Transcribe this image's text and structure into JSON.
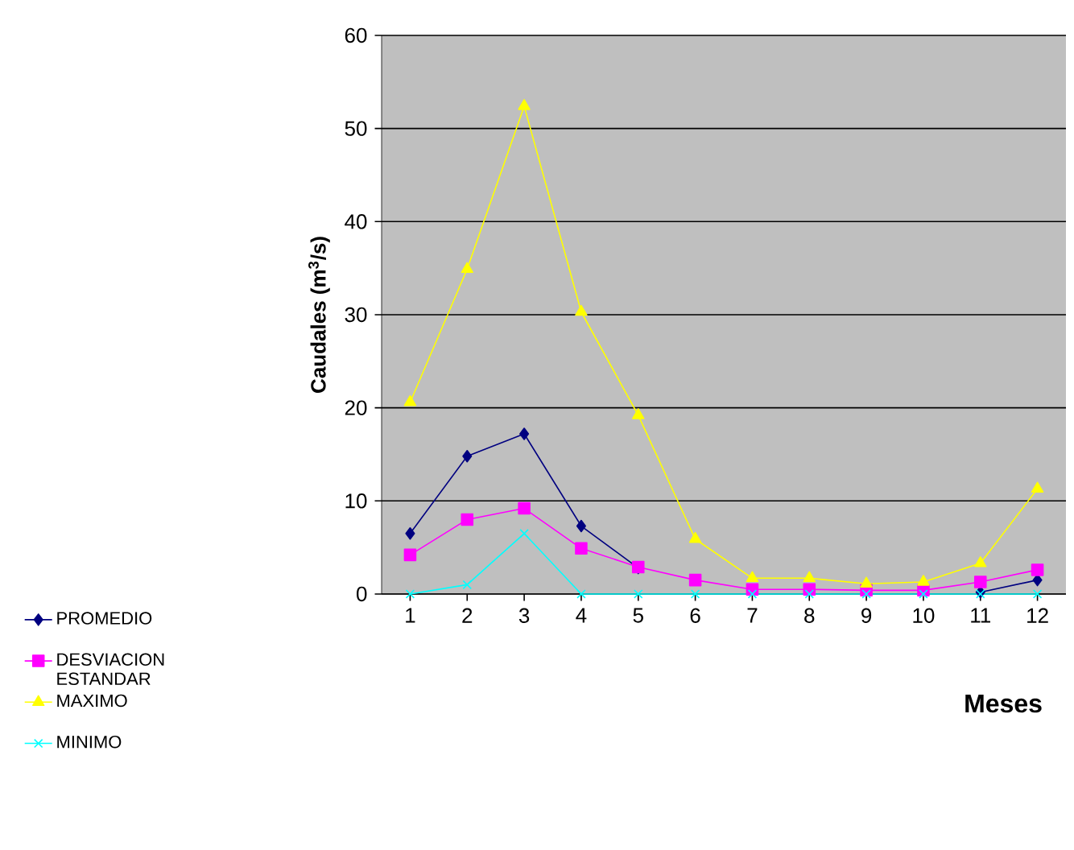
{
  "chart_data": {
    "type": "line",
    "xlabel": "Meses",
    "ylabel": "Caudales (m$^{3}$/s)",
    "categories": [
      "1",
      "2",
      "3",
      "4",
      "5",
      "6",
      "7",
      "8",
      "9",
      "10",
      "11",
      "12"
    ],
    "series": [
      {
        "name": "PROMEDIO",
        "color": "#000080",
        "marker": "diamond",
        "values": [
          6.5,
          14.8,
          17.2,
          7.3,
          2.8,
          null,
          null,
          null,
          null,
          null,
          0.2,
          1.5
        ]
      },
      {
        "name": "DESVIACION ESTANDAR",
        "color": "#ff00ff",
        "marker": "square",
        "values": [
          4.2,
          8.0,
          9.2,
          4.9,
          2.9,
          1.5,
          0.5,
          0.5,
          0.4,
          0.4,
          1.3,
          2.6
        ]
      },
      {
        "name": "MAXIMO",
        "color": "#ffff00",
        "marker": "triangle",
        "values": [
          20.6,
          34.9,
          52.4,
          30.3,
          19.2,
          5.9,
          1.7,
          1.7,
          1.1,
          1.3,
          3.3,
          11.3
        ]
      },
      {
        "name": "MINIMO",
        "color": "#00ffff",
        "marker": "cross",
        "values": [
          0,
          1.0,
          6.5,
          0,
          0,
          0,
          0,
          0,
          0,
          0,
          0,
          0
        ]
      }
    ],
    "ylim": [
      0,
      60
    ],
    "yticks": [
      0,
      10,
      20,
      30,
      40,
      50,
      60
    ],
    "grid": "y",
    "legend": "bottom left"
  }
}
